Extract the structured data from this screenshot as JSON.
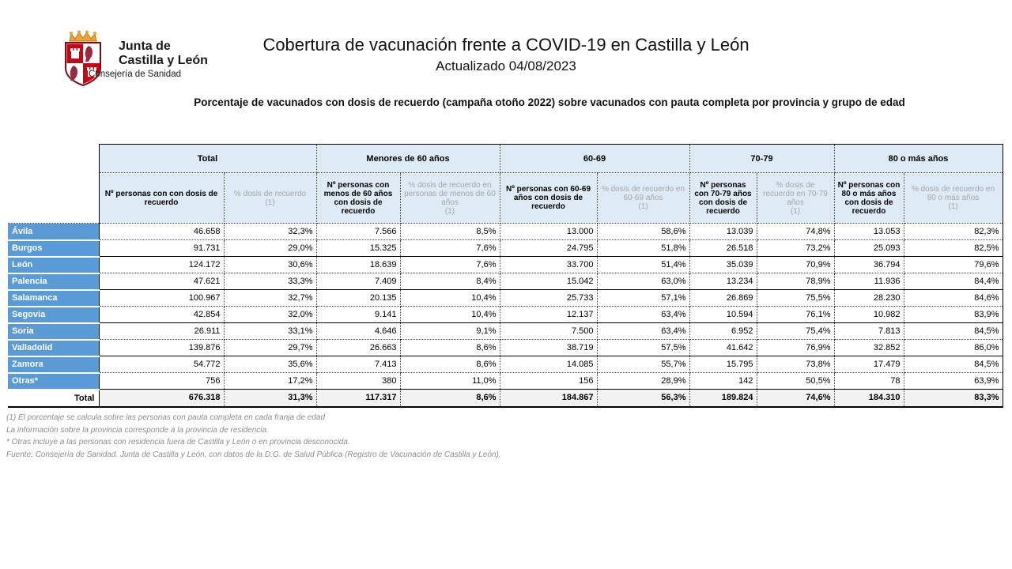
{
  "header": {
    "logo": {
      "org_line1": "Junta de",
      "org_line2": "Castilla y León",
      "department": "Consejería de Sanidad"
    },
    "title": "Cobertura de vacunación frente a COVID-19 en Castilla y León",
    "updated": "Actualizado 04/08/2023"
  },
  "caption": "Porcentaje de vacunados con dosis de recuerdo (campaña otoño 2022) sobre vacunados con pauta completa por provincia y grupo de edad",
  "table": {
    "groups": [
      {
        "label": "Total",
        "num_header": "Nº personas con con dosis de recuerdo",
        "pct_header": "% dosis de recuerdo\n(1)"
      },
      {
        "label": "Menores de 60 años",
        "num_header": "Nº personas con menos de 60 años con dosis de recuerdo",
        "pct_header": "% dosis de recuerdo en personas de menos de 60 años\n(1)"
      },
      {
        "label": "60-69",
        "num_header": "Nº personas con 60-69 años con dosis de recuerdo",
        "pct_header": "% dosis de recuerdo en 60-69 años\n(1)"
      },
      {
        "label": "70-79",
        "num_header": "Nº personas con 70-79 años con dosis de recuerdo",
        "pct_header": "% dosis de recuerdo en 70-79 años\n(1)"
      },
      {
        "label": "80 o más años",
        "num_header": "Nº personas con 80 o más años con dosis de recuerdo",
        "pct_header": "% dosis de recuerdo en 80 o más años\n(1)"
      }
    ],
    "rows": [
      {
        "province": "Ávila",
        "values": [
          "46.658",
          "32,3%",
          "7.566",
          "8,5%",
          "13.000",
          "58,6%",
          "13.039",
          "74,8%",
          "13.053",
          "82,3%"
        ]
      },
      {
        "province": "Burgos",
        "values": [
          "91.731",
          "29,0%",
          "15.325",
          "7,6%",
          "24.795",
          "51,8%",
          "26.518",
          "73,2%",
          "25.093",
          "82,5%"
        ]
      },
      {
        "province": "León",
        "values": [
          "124.172",
          "30,6%",
          "18.639",
          "7,6%",
          "33.700",
          "51,4%",
          "35.039",
          "70,9%",
          "36.794",
          "79,6%"
        ]
      },
      {
        "province": "Palencia",
        "values": [
          "47.621",
          "33,3%",
          "7.409",
          "8,4%",
          "15.042",
          "63,0%",
          "13.234",
          "78,9%",
          "11.936",
          "84,4%"
        ]
      },
      {
        "province": "Salamanca",
        "values": [
          "100.967",
          "32,7%",
          "20.135",
          "10,4%",
          "25.733",
          "57,1%",
          "26.869",
          "75,5%",
          "28.230",
          "84,6%"
        ]
      },
      {
        "province": "Segovia",
        "values": [
          "42.854",
          "32,0%",
          "9.141",
          "10,4%",
          "12.137",
          "63,4%",
          "10.594",
          "76,1%",
          "10.982",
          "83,9%"
        ]
      },
      {
        "province": "Soria",
        "values": [
          "26.911",
          "33,1%",
          "4.646",
          "9,1%",
          "7.500",
          "63,4%",
          "6.952",
          "75,4%",
          "7.813",
          "84,5%"
        ]
      },
      {
        "province": "Valladolid",
        "values": [
          "139.876",
          "29,7%",
          "26.663",
          "8,6%",
          "38.719",
          "57,5%",
          "41.642",
          "76,9%",
          "32.852",
          "86,0%"
        ]
      },
      {
        "province": "Zamora",
        "values": [
          "54.772",
          "35,6%",
          "7.413",
          "8,6%",
          "14.085",
          "55,7%",
          "15.795",
          "73,8%",
          "17.479",
          "84,5%"
        ]
      },
      {
        "province": "Otras*",
        "values": [
          "756",
          "17,2%",
          "380",
          "11,0%",
          "156",
          "28,9%",
          "142",
          "50,5%",
          "78",
          "63,9%"
        ]
      }
    ],
    "total_row": {
      "label": "Total",
      "values": [
        "676.318",
        "31,3%",
        "117.317",
        "8,6%",
        "184.867",
        "56,3%",
        "189.824",
        "74,6%",
        "184.310",
        "83,3%"
      ]
    }
  },
  "footnotes": [
    "(1) El porcentaje se calcula sobre las personas con pauta completa en cada franja de edad",
    "La información sobre la provincia corresponde a la provincia de residencia.",
    "* Otras incluye a las personas con residencia fuera de Castilla y León o en provincia desconocida.",
    "Fuente: Consejería de Sanidad. Junta de Castilla y León, con datos de la D.G. de Salud Pública (Registro de Vacunación de Castilla y León)."
  ],
  "colors": {
    "accent_blue": "#5B9BD5",
    "header_bg": "#DEEAF6",
    "muted_header_text": "#A6A6A6",
    "total_row_bg": "#F2F2F2",
    "crest_red": "#C00818",
    "crown_gold": "#E8A33D"
  }
}
